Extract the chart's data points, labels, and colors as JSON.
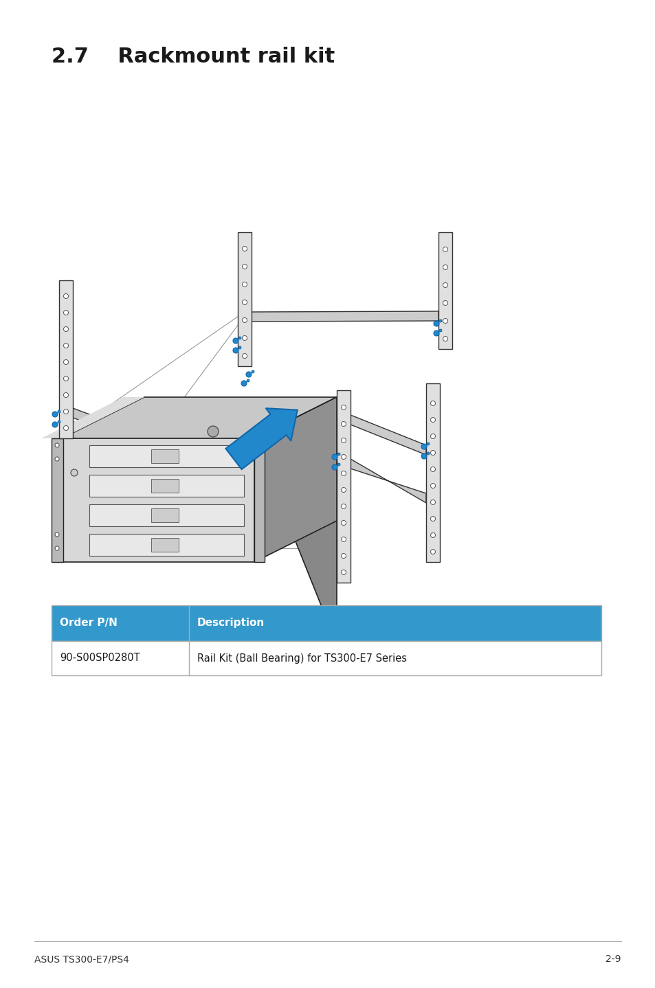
{
  "title": "2.7    Rackmount rail kit",
  "title_fontsize": 22,
  "title_fontweight": "bold",
  "background_color": "#ffffff",
  "table_header_bg": "#3399cc",
  "table_header_text_color": "#ffffff",
  "table_row_bg": "#ffffff",
  "table_row_text_color": "#1a1a1a",
  "table_border_color": "#aaaaaa",
  "table_headers": [
    "Order P/N",
    "Description"
  ],
  "table_data": [
    [
      "90-S00SP0280T",
      "Rail Kit (Ball Bearing) for TS300-E7 Series"
    ]
  ],
  "footer_left": "ASUS TS300-E7/PS4",
  "footer_right": "2-9",
  "footer_fontsize": 10
}
